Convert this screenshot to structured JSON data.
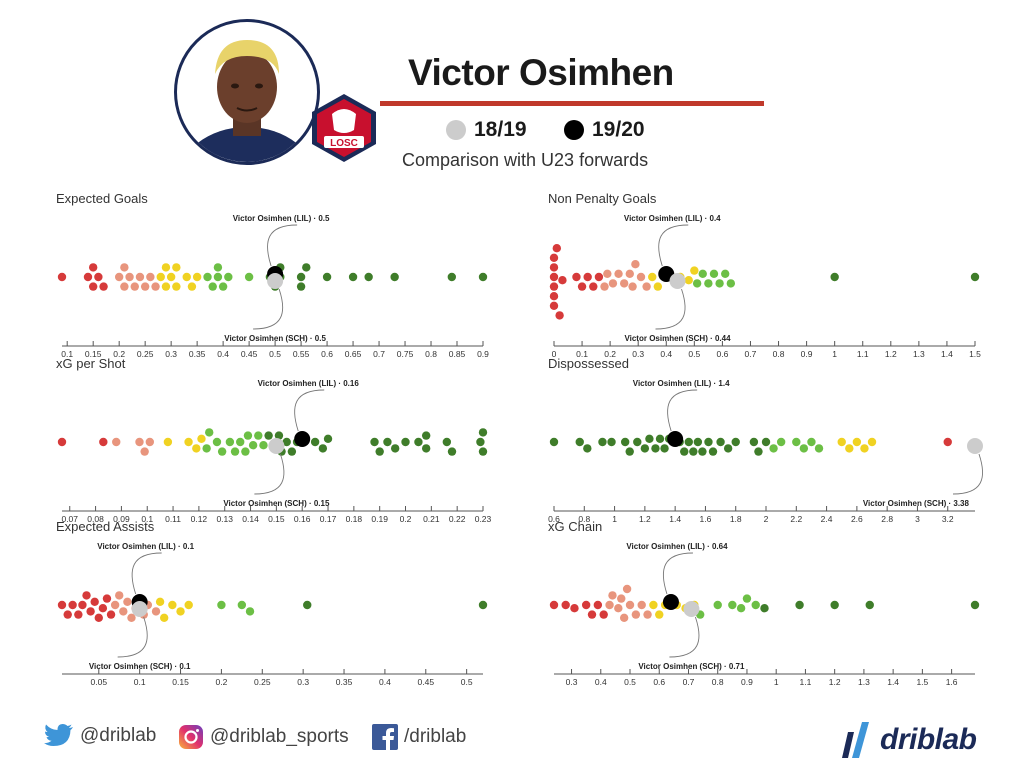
{
  "header": {
    "player_name": "Victor Osimhen",
    "legend": [
      {
        "label": "18/19",
        "color": "#cccccc"
      },
      {
        "label": "19/20",
        "color": "#000000"
      }
    ],
    "subtitle": "Comparison with U23 forwards",
    "crest_text": "LOSC"
  },
  "footer": {
    "twitter": "@driblab",
    "instagram": "@driblab_sports",
    "facebook": "/driblab",
    "brand": "driblab"
  },
  "colors": {
    "red": "#d63a3a",
    "salmon": "#e8957d",
    "yellow": "#f0d222",
    "lightgreen": "#6cbf45",
    "darkgreen": "#3f7d2a",
    "highlight_1920": "#000000",
    "highlight_1819": "#cccccc",
    "title_rule": "#c0392b"
  },
  "chart_data": [
    {
      "type": "scatter",
      "title": "Expected Goals",
      "xlim": [
        0.09,
        0.9
      ],
      "ticks": [
        0.1,
        0.15,
        0.2,
        0.25,
        0.3,
        0.35,
        0.4,
        0.45,
        0.5,
        0.55,
        0.6,
        0.65,
        0.7,
        0.75,
        0.8,
        0.85,
        0.9
      ],
      "lower_is_better": false,
      "values": [
        0.09,
        0.14,
        0.15,
        0.15,
        0.16,
        0.17,
        0.2,
        0.21,
        0.21,
        0.22,
        0.23,
        0.24,
        0.25,
        0.26,
        0.27,
        0.28,
        0.29,
        0.29,
        0.3,
        0.31,
        0.31,
        0.33,
        0.34,
        0.35,
        0.37,
        0.38,
        0.39,
        0.39,
        0.4,
        0.41,
        0.45,
        0.49,
        0.5,
        0.51,
        0.51,
        0.55,
        0.55,
        0.56,
        0.6,
        0.65,
        0.68,
        0.73,
        0.84,
        0.9
      ],
      "highlights": [
        {
          "season": "19/20",
          "label": "Victor Osimhen (LIL) · 0.5",
          "value": 0.5,
          "position": "top"
        },
        {
          "season": "18/19",
          "label": "Victor Osimhen (SCH) · 0.5",
          "value": 0.5,
          "position": "bottom"
        }
      ]
    },
    {
      "type": "scatter",
      "title": "Non Penalty Goals",
      "xlim": [
        0,
        1.5
      ],
      "ticks": [
        0,
        0.1,
        0.2,
        0.3,
        0.4,
        0.5,
        0.6,
        0.7,
        0.8,
        0.9,
        1,
        1.1,
        1.2,
        1.3,
        1.4,
        1.5
      ],
      "lower_is_better": false,
      "values": [
        0,
        0,
        0,
        0,
        0,
        0,
        0.01,
        0.02,
        0.03,
        0.08,
        0.1,
        0.12,
        0.14,
        0.16,
        0.18,
        0.19,
        0.21,
        0.23,
        0.25,
        0.27,
        0.28,
        0.29,
        0.31,
        0.33,
        0.35,
        0.37,
        0.45,
        0.48,
        0.5,
        0.51,
        0.53,
        0.55,
        0.57,
        0.59,
        0.61,
        0.63,
        1.0,
        1.5
      ],
      "highlights": [
        {
          "season": "19/20",
          "label": "Victor Osimhen (LIL) · 0.4",
          "value": 0.4,
          "position": "top"
        },
        {
          "season": "18/19",
          "label": "Victor Osimhen (SCH) · 0.44",
          "value": 0.44,
          "position": "bottom"
        }
      ]
    },
    {
      "type": "scatter",
      "title": "xG per Shot",
      "xlim": [
        0.067,
        0.23
      ],
      "ticks": [
        0.07,
        0.08,
        0.09,
        0.1,
        0.11,
        0.12,
        0.13,
        0.14,
        0.15,
        0.16,
        0.17,
        0.18,
        0.19,
        0.2,
        0.21,
        0.22,
        0.23
      ],
      "lower_is_better": false,
      "values": [
        0.067,
        0.083,
        0.088,
        0.097,
        0.099,
        0.101,
        0.108,
        0.116,
        0.119,
        0.121,
        0.123,
        0.124,
        0.127,
        0.129,
        0.132,
        0.134,
        0.136,
        0.138,
        0.139,
        0.141,
        0.143,
        0.145,
        0.147,
        0.149,
        0.151,
        0.152,
        0.154,
        0.156,
        0.158,
        0.165,
        0.168,
        0.17,
        0.188,
        0.19,
        0.193,
        0.196,
        0.2,
        0.205,
        0.208,
        0.208,
        0.216,
        0.218,
        0.229,
        0.23,
        0.23
      ],
      "highlights": [
        {
          "season": "19/20",
          "label": "Victor Osimhen (LIL) · 0.16",
          "value": 0.16,
          "position": "top"
        },
        {
          "season": "18/19",
          "label": "Victor Osimhen (SCH) · 0.15",
          "value": 0.15,
          "position": "bottom"
        }
      ]
    },
    {
      "type": "scatter",
      "title": "Dispossessed",
      "xlim": [
        0.6,
        3.38
      ],
      "ticks": [
        0.6,
        0.8,
        1,
        1.2,
        1.4,
        1.6,
        1.8,
        2,
        2.2,
        2.4,
        2.6,
        2.8,
        3,
        3.2
      ],
      "lower_is_better": true,
      "values": [
        0.6,
        0.77,
        0.82,
        0.92,
        0.98,
        1.07,
        1.1,
        1.15,
        1.2,
        1.23,
        1.27,
        1.3,
        1.33,
        1.36,
        1.43,
        1.46,
        1.49,
        1.52,
        1.55,
        1.58,
        1.62,
        1.65,
        1.7,
        1.75,
        1.8,
        1.92,
        1.95,
        2.0,
        2.05,
        2.1,
        2.2,
        2.25,
        2.3,
        2.35,
        2.5,
        2.55,
        2.6,
        2.65,
        2.7,
        3.2
      ],
      "highlights": [
        {
          "season": "19/20",
          "label": "Victor Osimhen (LIL) · 1.4",
          "value": 1.4,
          "position": "top"
        },
        {
          "season": "18/19",
          "label": "Victor Osimhen (SCH) · 3.38",
          "value": 3.38,
          "position": "bottom"
        }
      ]
    },
    {
      "type": "scatter",
      "title": "Expected Assists",
      "xlim": [
        0.005,
        0.52
      ],
      "ticks": [
        0.05,
        0.1,
        0.15,
        0.2,
        0.25,
        0.3,
        0.35,
        0.4,
        0.45,
        0.5
      ],
      "lower_is_better": false,
      "values": [
        0.005,
        0.012,
        0.018,
        0.025,
        0.03,
        0.035,
        0.04,
        0.045,
        0.05,
        0.055,
        0.06,
        0.065,
        0.07,
        0.075,
        0.08,
        0.085,
        0.09,
        0.095,
        0.1,
        0.105,
        0.11,
        0.12,
        0.125,
        0.13,
        0.14,
        0.15,
        0.16,
        0.2,
        0.225,
        0.235,
        0.305,
        0.52
      ],
      "highlights": [
        {
          "season": "19/20",
          "label": "Victor Osimhen (LIL) · 0.1",
          "value": 0.1,
          "position": "top"
        },
        {
          "season": "18/19",
          "label": "Victor Osimhen (SCH) · 0.1",
          "value": 0.1,
          "position": "bottom"
        }
      ]
    },
    {
      "type": "scatter",
      "title": "xG Chain",
      "xlim": [
        0.24,
        1.68
      ],
      "ticks": [
        0.3,
        0.4,
        0.5,
        0.6,
        0.7,
        0.8,
        0.9,
        1,
        1.1,
        1.2,
        1.3,
        1.4,
        1.5,
        1.6
      ],
      "lower_is_better": false,
      "values": [
        0.24,
        0.28,
        0.31,
        0.35,
        0.37,
        0.39,
        0.41,
        0.43,
        0.44,
        0.46,
        0.47,
        0.48,
        0.49,
        0.5,
        0.52,
        0.54,
        0.56,
        0.58,
        0.6,
        0.62,
        0.66,
        0.69,
        0.72,
        0.74,
        0.8,
        0.85,
        0.88,
        0.9,
        0.93,
        0.96,
        1.08,
        1.2,
        1.32,
        1.68
      ],
      "highlights": [
        {
          "season": "19/20",
          "label": "Victor Osimhen (LIL) · 0.64",
          "value": 0.64,
          "position": "top"
        },
        {
          "season": "18/19",
          "label": "Victor Osimhen (SCH) · 0.71",
          "value": 0.71,
          "position": "bottom"
        }
      ]
    }
  ]
}
